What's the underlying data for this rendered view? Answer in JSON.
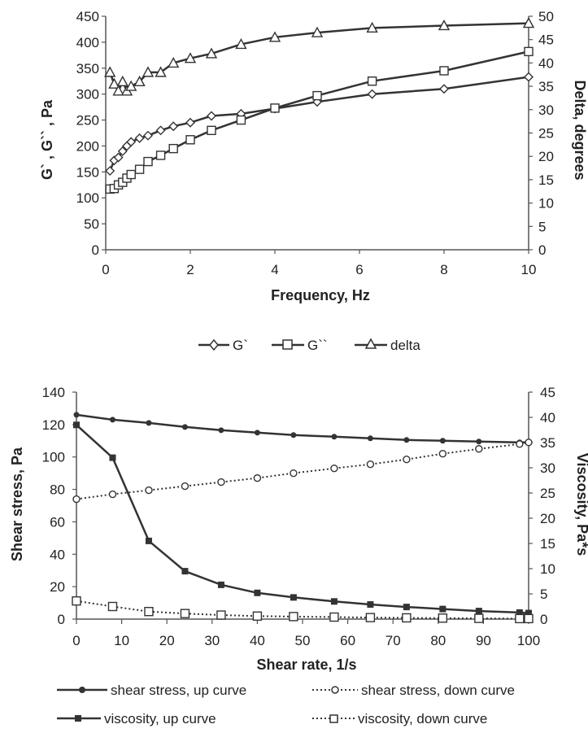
{
  "chart_data": [
    {
      "type": "line",
      "xlabel": "Frequency, Hz",
      "ylabel": "G` , G`` , Pa",
      "y2label": "Delta, degrees",
      "xlim": [
        0,
        10
      ],
      "ylim": [
        0,
        450
      ],
      "y2lim": [
        0,
        50
      ],
      "xticks": [
        "0",
        "2",
        "4",
        "6",
        "8",
        "10"
      ],
      "yticks": [
        "0",
        "50",
        "100",
        "150",
        "200",
        "250",
        "300",
        "350",
        "400",
        "450"
      ],
      "y2ticks": [
        "0",
        "5",
        "10",
        "15",
        "20",
        "25",
        "30",
        "35",
        "40",
        "45",
        "50"
      ],
      "legend_position": "bottom",
      "series": [
        {
          "name": "G`",
          "marker": "diamond",
          "axis": "left",
          "color": "#333333",
          "x": [
            0.1,
            0.2,
            0.3,
            0.4,
            0.5,
            0.6,
            0.8,
            1.0,
            1.3,
            1.6,
            2.0,
            2.5,
            3.2,
            4.0,
            5.0,
            6.3,
            8.0,
            10.0
          ],
          "y": [
            152,
            172,
            178,
            190,
            200,
            208,
            215,
            220,
            230,
            238,
            245,
            258,
            262,
            272,
            285,
            300,
            310,
            333
          ]
        },
        {
          "name": "G``",
          "marker": "square",
          "axis": "left",
          "color": "#333333",
          "x": [
            0.1,
            0.2,
            0.3,
            0.4,
            0.5,
            0.6,
            0.8,
            1.0,
            1.3,
            1.6,
            2.0,
            2.5,
            3.2,
            4.0,
            5.0,
            6.3,
            8.0,
            10.0
          ],
          "y": [
            117,
            118,
            125,
            130,
            138,
            145,
            155,
            170,
            182,
            195,
            212,
            230,
            250,
            273,
            297,
            325,
            345,
            382
          ]
        },
        {
          "name": "delta",
          "marker": "triangle",
          "axis": "right",
          "color": "#333333",
          "x": [
            0.1,
            0.2,
            0.3,
            0.4,
            0.5,
            0.6,
            0.8,
            1.0,
            1.3,
            1.6,
            2.0,
            2.5,
            3.2,
            4.0,
            5.0,
            6.3,
            8.0,
            10.0
          ],
          "y": [
            38,
            35.5,
            34,
            36,
            34,
            35,
            36,
            38,
            38,
            40,
            41,
            42,
            44,
            45.5,
            46.5,
            47.5,
            48,
            48.5
          ]
        }
      ]
    },
    {
      "type": "line",
      "xlabel": "Shear rate, 1/s",
      "ylabel": "Shear stress, Pa",
      "y2label": "Viscosity, Pa*s",
      "xlim": [
        0,
        100
      ],
      "ylim": [
        0,
        140
      ],
      "y2lim": [
        0,
        45
      ],
      "xticks": [
        "0",
        "10",
        "20",
        "30",
        "40",
        "50",
        "60",
        "70",
        "80",
        "90",
        "100"
      ],
      "yticks": [
        "0",
        "20",
        "40",
        "60",
        "80",
        "100",
        "120",
        "140"
      ],
      "y2ticks": [
        "0",
        "5",
        "10",
        "15",
        "20",
        "25",
        "30",
        "35",
        "40",
        "45"
      ],
      "legend_position": "bottom",
      "series": [
        {
          "name": "shear stress,  up curve",
          "marker": "dot",
          "style": "solid",
          "axis": "left",
          "color": "#333333",
          "x": [
            0,
            8,
            16,
            24,
            32,
            40,
            48,
            57,
            65,
            73,
            81,
            89,
            98,
            100
          ],
          "y": [
            126,
            123,
            121,
            118.5,
            116.5,
            115,
            113.5,
            112.5,
            111.5,
            110.5,
            110,
            109.5,
            109,
            109
          ]
        },
        {
          "name": "shear stress,  down curve",
          "marker": "circle",
          "style": "dotted",
          "axis": "left",
          "color": "#333333",
          "x": [
            0,
            8,
            16,
            24,
            32,
            40,
            48,
            57,
            65,
            73,
            81,
            89,
            98,
            100
          ],
          "y": [
            74,
            77,
            79.5,
            82,
            84.5,
            87,
            90,
            93,
            95.5,
            98.5,
            102,
            105,
            108,
            109
          ]
        },
        {
          "name": "viscosity,  up curve",
          "marker": "square-filled",
          "style": "solid",
          "axis": "right",
          "color": "#333333",
          "x": [
            0,
            8,
            16,
            24,
            32,
            40,
            48,
            57,
            65,
            73,
            81,
            89,
            98,
            100
          ],
          "y": [
            38.5,
            32,
            15.5,
            9.5,
            6.8,
            5.2,
            4.3,
            3.5,
            2.9,
            2.4,
            2.0,
            1.6,
            1.3,
            1.2
          ]
        },
        {
          "name": "viscosity,  down curve",
          "marker": "square",
          "style": "dotted",
          "axis": "right",
          "color": "#333333",
          "x": [
            0,
            8,
            16,
            24,
            32,
            40,
            48,
            57,
            65,
            73,
            81,
            89,
            98,
            100
          ],
          "y": [
            3.6,
            2.5,
            1.5,
            1.1,
            0.8,
            0.6,
            0.5,
            0.4,
            0.3,
            0.25,
            0.2,
            0.15,
            0.1,
            0.1
          ]
        }
      ]
    }
  ]
}
